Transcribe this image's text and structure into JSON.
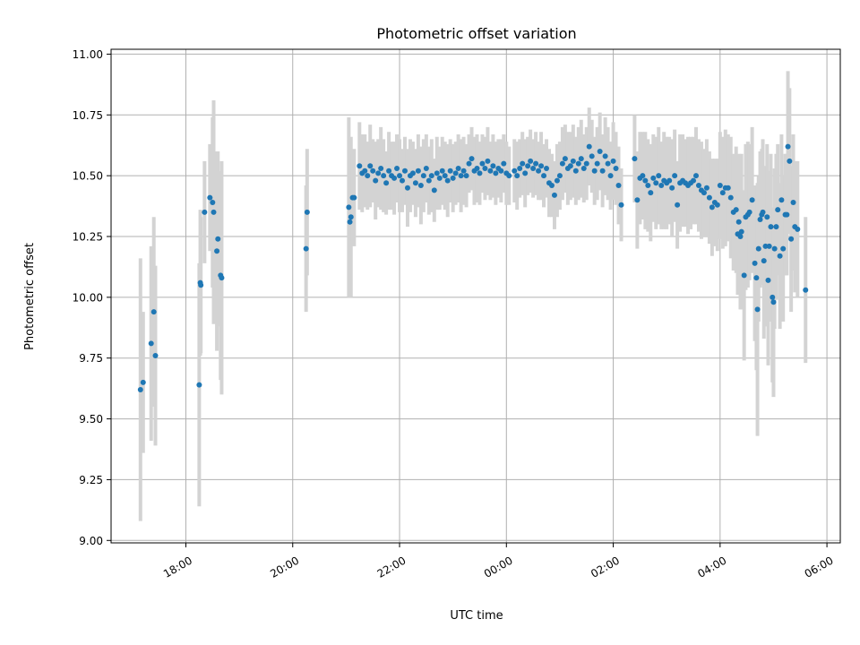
{
  "chart_data": {
    "type": "scatter",
    "title": "Photometric offset variation",
    "xlabel": "UTC time",
    "ylabel": "Photometric offset",
    "x_unit": "hours since 00:00 UTC (negative = previous evening)",
    "xlim": [
      -7.4,
      6.25
    ],
    "ylim": [
      8.99,
      11.02
    ],
    "x_ticks": [
      -6,
      -4,
      -2,
      0,
      2,
      4,
      6
    ],
    "x_tick_labels": [
      "18:00",
      "20:00",
      "22:00",
      "00:00",
      "02:00",
      "04:00",
      "06:00"
    ],
    "y_ticks": [
      9.0,
      9.25,
      9.5,
      9.75,
      10.0,
      10.25,
      10.5,
      10.75,
      11.0
    ],
    "y_tick_labels": [
      "9.00",
      "9.25",
      "9.50",
      "9.75",
      "10.00",
      "10.25",
      "10.50",
      "10.75",
      "11.00"
    ],
    "grid": true,
    "colors": {
      "point": "#1f77b4",
      "errorbar": "#d3d3d3",
      "grid": "#b0b0b0",
      "axis": "#000000"
    },
    "series": [
      {
        "name": "offset",
        "points": [
          [
            -6.85,
            9.62,
            0.54
          ],
          [
            -6.8,
            9.65,
            0.29
          ],
          [
            -6.65,
            9.81,
            0.4
          ],
          [
            -6.6,
            9.94,
            0.39
          ],
          [
            -6.57,
            9.76,
            0.37
          ],
          [
            -5.75,
            9.64,
            0.5
          ],
          [
            -5.73,
            10.06,
            0.3
          ],
          [
            -5.72,
            10.05,
            0.28
          ],
          [
            -5.65,
            10.35,
            0.21
          ],
          [
            -5.55,
            10.41,
            0.22
          ],
          [
            -5.5,
            10.39,
            0.35
          ],
          [
            -5.48,
            10.35,
            0.46
          ],
          [
            -5.42,
            10.19,
            0.41
          ],
          [
            -5.4,
            10.24,
            0.36
          ],
          [
            -5.35,
            10.09,
            0.43
          ],
          [
            -5.33,
            10.08,
            0.48
          ],
          [
            -3.75,
            10.2,
            0.26
          ],
          [
            -3.73,
            10.35,
            0.26
          ],
          [
            -2.95,
            10.37,
            0.37
          ],
          [
            -2.93,
            10.31,
            0.31
          ],
          [
            -2.91,
            10.33,
            0.33
          ],
          [
            -2.88,
            10.41,
            0.18
          ],
          [
            -2.85,
            10.41,
            0.2
          ],
          [
            -2.75,
            10.54,
            0.18
          ],
          [
            -2.7,
            10.51,
            0.16
          ],
          [
            -2.65,
            10.52,
            0.15
          ],
          [
            -2.6,
            10.5,
            0.14
          ],
          [
            -2.55,
            10.54,
            0.17
          ],
          [
            -2.5,
            10.52,
            0.13
          ],
          [
            -2.45,
            10.48,
            0.16
          ],
          [
            -2.4,
            10.51,
            0.14
          ],
          [
            -2.35,
            10.53,
            0.17
          ],
          [
            -2.3,
            10.5,
            0.15
          ],
          [
            -2.25,
            10.47,
            0.13
          ],
          [
            -2.2,
            10.52,
            0.16
          ],
          [
            -2.15,
            10.5,
            0.14
          ],
          [
            -2.1,
            10.49,
            0.15
          ],
          [
            -2.05,
            10.53,
            0.14
          ],
          [
            -2.0,
            10.5,
            0.15
          ],
          [
            -1.95,
            10.48,
            0.13
          ],
          [
            -1.9,
            10.52,
            0.14
          ],
          [
            -1.85,
            10.45,
            0.16
          ],
          [
            -1.8,
            10.5,
            0.15
          ],
          [
            -1.75,
            10.51,
            0.13
          ],
          [
            -1.7,
            10.47,
            0.14
          ],
          [
            -1.65,
            10.52,
            0.15
          ],
          [
            -1.6,
            10.46,
            0.16
          ],
          [
            -1.55,
            10.5,
            0.15
          ],
          [
            -1.5,
            10.53,
            0.14
          ],
          [
            -1.45,
            10.48,
            0.14
          ],
          [
            -1.4,
            10.5,
            0.15
          ],
          [
            -1.35,
            10.44,
            0.13
          ],
          [
            -1.3,
            10.51,
            0.15
          ],
          [
            -1.25,
            10.49,
            0.13
          ],
          [
            -1.2,
            10.52,
            0.14
          ],
          [
            -1.15,
            10.5,
            0.14
          ],
          [
            -1.1,
            10.48,
            0.15
          ],
          [
            -1.05,
            10.52,
            0.13
          ],
          [
            -1.0,
            10.49,
            0.14
          ],
          [
            -0.95,
            10.51,
            0.13
          ],
          [
            -0.9,
            10.53,
            0.14
          ],
          [
            -0.85,
            10.5,
            0.15
          ],
          [
            -0.8,
            10.52,
            0.14
          ],
          [
            -0.75,
            10.5,
            0.13
          ],
          [
            -0.7,
            10.55,
            0.12
          ],
          [
            -0.65,
            10.57,
            0.13
          ],
          [
            -0.6,
            10.52,
            0.14
          ],
          [
            -0.55,
            10.53,
            0.14
          ],
          [
            -0.5,
            10.51,
            0.13
          ],
          [
            -0.45,
            10.55,
            0.12
          ],
          [
            -0.4,
            10.53,
            0.13
          ],
          [
            -0.35,
            10.56,
            0.14
          ],
          [
            -0.3,
            10.52,
            0.12
          ],
          [
            -0.25,
            10.54,
            0.13
          ],
          [
            -0.2,
            10.51,
            0.13
          ],
          [
            -0.15,
            10.53,
            0.12
          ],
          [
            -0.1,
            10.52,
            0.13
          ],
          [
            -0.05,
            10.55,
            0.12
          ],
          [
            0.0,
            10.51,
            0.13
          ],
          [
            0.05,
            10.5,
            0.12
          ],
          [
            0.15,
            10.52,
            0.13
          ],
          [
            0.2,
            10.5,
            0.14
          ],
          [
            0.25,
            10.53,
            0.12
          ],
          [
            0.3,
            10.55,
            0.13
          ],
          [
            0.35,
            10.51,
            0.14
          ],
          [
            0.4,
            10.54,
            0.12
          ],
          [
            0.45,
            10.56,
            0.13
          ],
          [
            0.5,
            10.53,
            0.12
          ],
          [
            0.55,
            10.55,
            0.13
          ],
          [
            0.6,
            10.52,
            0.12
          ],
          [
            0.65,
            10.54,
            0.14
          ],
          [
            0.7,
            10.5,
            0.13
          ],
          [
            0.75,
            10.53,
            0.12
          ],
          [
            0.8,
            10.47,
            0.14
          ],
          [
            0.85,
            10.46,
            0.13
          ],
          [
            0.9,
            10.42,
            0.14
          ],
          [
            0.95,
            10.48,
            0.15
          ],
          [
            1.0,
            10.5,
            0.14
          ],
          [
            1.05,
            10.55,
            0.15
          ],
          [
            1.1,
            10.57,
            0.14
          ],
          [
            1.15,
            10.53,
            0.15
          ],
          [
            1.2,
            10.54,
            0.14
          ],
          [
            1.25,
            10.56,
            0.15
          ],
          [
            1.3,
            10.52,
            0.14
          ],
          [
            1.35,
            10.55,
            0.15
          ],
          [
            1.4,
            10.57,
            0.16
          ],
          [
            1.45,
            10.53,
            0.14
          ],
          [
            1.5,
            10.55,
            0.15
          ],
          [
            1.55,
            10.62,
            0.16
          ],
          [
            1.6,
            10.58,
            0.15
          ],
          [
            1.65,
            10.52,
            0.14
          ],
          [
            1.7,
            10.55,
            0.15
          ],
          [
            1.75,
            10.6,
            0.16
          ],
          [
            1.8,
            10.52,
            0.15
          ],
          [
            1.85,
            10.58,
            0.16
          ],
          [
            1.9,
            10.55,
            0.15
          ],
          [
            1.95,
            10.5,
            0.14
          ],
          [
            2.0,
            10.56,
            0.16
          ],
          [
            2.05,
            10.53,
            0.15
          ],
          [
            2.1,
            10.46,
            0.16
          ],
          [
            2.15,
            10.38,
            0.15
          ],
          [
            2.4,
            10.57,
            0.18
          ],
          [
            2.45,
            10.4,
            0.2
          ],
          [
            2.5,
            10.49,
            0.19
          ],
          [
            2.55,
            10.5,
            0.18
          ],
          [
            2.6,
            10.48,
            0.2
          ],
          [
            2.65,
            10.46,
            0.19
          ],
          [
            2.7,
            10.43,
            0.2
          ],
          [
            2.75,
            10.49,
            0.18
          ],
          [
            2.8,
            10.47,
            0.19
          ],
          [
            2.85,
            10.5,
            0.2
          ],
          [
            2.9,
            10.46,
            0.18
          ],
          [
            2.95,
            10.48,
            0.2
          ],
          [
            3.0,
            10.47,
            0.19
          ],
          [
            3.05,
            10.48,
            0.18
          ],
          [
            3.1,
            10.45,
            0.2
          ],
          [
            3.15,
            10.5,
            0.19
          ],
          [
            3.2,
            10.38,
            0.18
          ],
          [
            3.25,
            10.47,
            0.2
          ],
          [
            3.3,
            10.48,
            0.19
          ],
          [
            3.35,
            10.47,
            0.18
          ],
          [
            3.4,
            10.46,
            0.2
          ],
          [
            3.45,
            10.47,
            0.19
          ],
          [
            3.5,
            10.48,
            0.18
          ],
          [
            3.55,
            10.5,
            0.2
          ],
          [
            3.6,
            10.46,
            0.19
          ],
          [
            3.65,
            10.44,
            0.2
          ],
          [
            3.7,
            10.43,
            0.18
          ],
          [
            3.75,
            10.45,
            0.2
          ],
          [
            3.8,
            10.41,
            0.19
          ],
          [
            3.85,
            10.37,
            0.2
          ],
          [
            3.9,
            10.39,
            0.18
          ],
          [
            3.95,
            10.38,
            0.19
          ],
          [
            4.0,
            10.46,
            0.22
          ],
          [
            4.05,
            10.43,
            0.23
          ],
          [
            4.1,
            10.45,
            0.24
          ],
          [
            4.15,
            10.45,
            0.22
          ],
          [
            4.2,
            10.41,
            0.25
          ],
          [
            4.25,
            10.35,
            0.24
          ],
          [
            4.3,
            10.36,
            0.26
          ],
          [
            4.33,
            10.26,
            0.25
          ],
          [
            4.35,
            10.31,
            0.28
          ],
          [
            4.38,
            10.25,
            0.3
          ],
          [
            4.4,
            10.27,
            0.32
          ],
          [
            4.45,
            10.09,
            0.35
          ],
          [
            4.48,
            10.33,
            0.3
          ],
          [
            4.52,
            10.34,
            0.3
          ],
          [
            4.55,
            10.35,
            0.28
          ],
          [
            4.6,
            10.4,
            0.3
          ],
          [
            4.65,
            10.14,
            0.32
          ],
          [
            4.68,
            10.08,
            0.38
          ],
          [
            4.7,
            9.95,
            0.52
          ],
          [
            4.72,
            10.2,
            0.3
          ],
          [
            4.75,
            10.32,
            0.28
          ],
          [
            4.78,
            10.34,
            0.27
          ],
          [
            4.8,
            10.35,
            0.3
          ],
          [
            4.82,
            10.15,
            0.32
          ],
          [
            4.85,
            10.21,
            0.33
          ],
          [
            4.88,
            10.33,
            0.3
          ],
          [
            4.9,
            10.07,
            0.35
          ],
          [
            4.92,
            10.21,
            0.31
          ],
          [
            4.95,
            10.29,
            0.3
          ],
          [
            4.98,
            10.0,
            0.35
          ],
          [
            5.0,
            9.98,
            0.39
          ],
          [
            5.02,
            10.2,
            0.33
          ],
          [
            5.05,
            10.29,
            0.3
          ],
          [
            5.08,
            10.36,
            0.27
          ],
          [
            5.12,
            10.17,
            0.3
          ],
          [
            5.15,
            10.4,
            0.27
          ],
          [
            5.18,
            10.2,
            0.3
          ],
          [
            5.22,
            10.34,
            0.25
          ],
          [
            5.25,
            10.34,
            0.25
          ],
          [
            5.27,
            10.62,
            0.31
          ],
          [
            5.3,
            10.56,
            0.3
          ],
          [
            5.33,
            10.24,
            0.3
          ],
          [
            5.37,
            10.39,
            0.28
          ],
          [
            5.4,
            10.29,
            0.27
          ],
          [
            5.45,
            10.28,
            0.28
          ],
          [
            5.6,
            10.03,
            0.3
          ]
        ]
      }
    ]
  }
}
